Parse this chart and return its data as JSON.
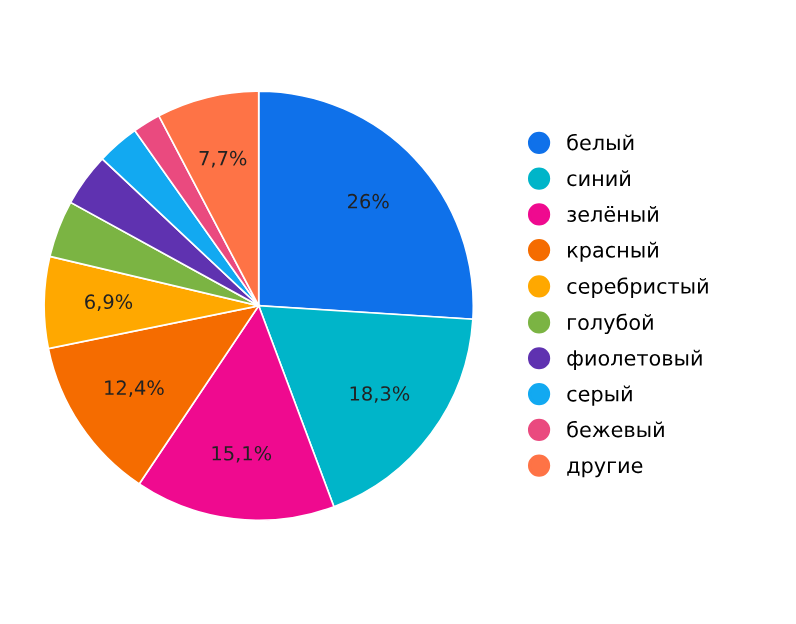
{
  "chart_data": {
    "type": "pie",
    "categories": [
      "белый",
      "синий",
      "зелёный",
      "красный",
      "серебристый",
      "голубой",
      "фиолетовый",
      "серый",
      "бежевый",
      "другие"
    ],
    "values": [
      26,
      18.3,
      15.1,
      12.4,
      6.9,
      4.3,
      4.0,
      3.2,
      2.1,
      7.7
    ],
    "value_labels": [
      "26%",
      "18,3%",
      "15,1%",
      "12,4%",
      "6,9%",
      null,
      null,
      null,
      null,
      "7,7%"
    ],
    "colors": [
      "#0f71ea",
      "#00b5c9",
      "#ef0a8f",
      "#f56c00",
      "#ffa800",
      "#7bb443",
      "#5f32b0",
      "#12a9f1",
      "#ea4a7f",
      "#fe7346"
    ],
    "legend": "right"
  }
}
